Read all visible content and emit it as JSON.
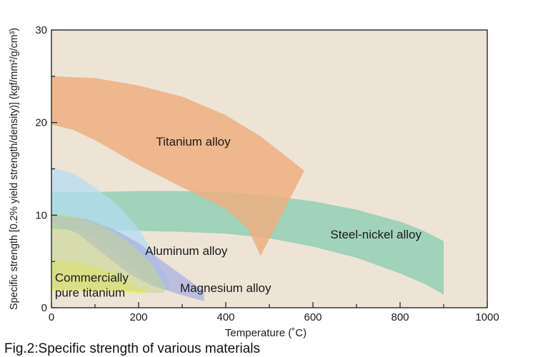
{
  "chart_data": {
    "type": "area",
    "xlabel": "Temperature (˚C)",
    "ylabel": "Specific strength [0.2% yield strength/density)] (kgf/mm²/g/cm³)",
    "xlim": [
      0,
      1000
    ],
    "ylim": [
      0,
      30
    ],
    "x_ticks": [
      "0",
      "200",
      "400",
      "600",
      "800",
      "1000"
    ],
    "y_ticks": [
      "0",
      "10",
      "20",
      "30"
    ],
    "grid": false,
    "background": "#ede4d6",
    "series": [
      {
        "name": "Steel-nickel alloy",
        "label_lines": [
          "Steel-nickel alloy"
        ],
        "label_at": [
          640,
          7.5
        ],
        "color": "#8ccdb2",
        "opacity": 0.78,
        "upper": [
          [
            0,
            12.5
          ],
          [
            100,
            12.5
          ],
          [
            200,
            12.6
          ],
          [
            300,
            12.6
          ],
          [
            400,
            12.5
          ],
          [
            500,
            12.1
          ],
          [
            600,
            11.5
          ],
          [
            700,
            10.6
          ],
          [
            800,
            9.3
          ],
          [
            850,
            8.4
          ],
          [
            900,
            7.2
          ]
        ],
        "lower": [
          [
            0,
            8.5
          ],
          [
            100,
            8.4
          ],
          [
            200,
            8.3
          ],
          [
            300,
            8.2
          ],
          [
            400,
            8.0
          ],
          [
            500,
            7.5
          ],
          [
            600,
            6.6
          ],
          [
            700,
            5.4
          ],
          [
            800,
            3.7
          ],
          [
            860,
            2.5
          ],
          [
            900,
            1.4
          ]
        ]
      },
      {
        "name": "Titanium alloy",
        "label_lines": [
          "Titanium alloy"
        ],
        "label_at": [
          240,
          17.5
        ],
        "color": "#edaf80",
        "opacity": 0.85,
        "upper": [
          [
            0,
            25.0
          ],
          [
            100,
            24.8
          ],
          [
            200,
            24.0
          ],
          [
            300,
            22.8
          ],
          [
            400,
            20.8
          ],
          [
            480,
            18.5
          ],
          [
            540,
            16.3
          ],
          [
            580,
            14.8
          ]
        ],
        "lower": [
          [
            0,
            19.8
          ],
          [
            50,
            19.2
          ],
          [
            100,
            18.1
          ],
          [
            200,
            15.4
          ],
          [
            300,
            13.0
          ],
          [
            400,
            10.7
          ],
          [
            450,
            8.6
          ],
          [
            480,
            5.6
          ]
        ]
      },
      {
        "name": "Aluminum alloy",
        "label_lines": [
          "Aluminum alloy"
        ],
        "label_at": [
          215,
          5.7
        ],
        "color": "#b3dcf2",
        "opacity": 0.72,
        "upper": [
          [
            0,
            15.2
          ],
          [
            50,
            14.5
          ],
          [
            100,
            13.0
          ],
          [
            150,
            11.2
          ],
          [
            200,
            8.5
          ],
          [
            240,
            5.5
          ],
          [
            270,
            2.8
          ]
        ],
        "lower": [
          [
            0,
            9.0
          ],
          [
            50,
            8.5
          ],
          [
            100,
            7.5
          ],
          [
            150,
            5.8
          ],
          [
            200,
            3.8
          ],
          [
            240,
            2.5
          ],
          [
            270,
            1.8
          ]
        ]
      },
      {
        "name": "Magnesium alloy",
        "label_lines": [
          "Magnesium alloy"
        ],
        "label_at": [
          295,
          1.7
        ],
        "color": "#a9aee2",
        "opacity": 0.72,
        "upper": [
          [
            0,
            10.0
          ],
          [
            80,
            9.6
          ],
          [
            150,
            8.3
          ],
          [
            200,
            7.0
          ],
          [
            250,
            5.2
          ],
          [
            300,
            3.5
          ],
          [
            350,
            1.8
          ]
        ],
        "lower": [
          [
            0,
            9.2
          ],
          [
            60,
            8.0
          ],
          [
            120,
            5.8
          ],
          [
            180,
            3.6
          ],
          [
            230,
            2.4
          ],
          [
            290,
            1.5
          ],
          [
            350,
            0.7
          ]
        ]
      },
      {
        "name": "Commercially pure titanium",
        "label_lines": [
          "Commercially",
          "pure titanium"
        ],
        "label_at": [
          8,
          1.2
        ],
        "color": "#f2ec72",
        "opacity": 0.88,
        "upper": [
          [
            0,
            5.2
          ],
          [
            50,
            5.0
          ],
          [
            100,
            4.5
          ],
          [
            150,
            3.6
          ],
          [
            200,
            2.2
          ],
          [
            220,
            1.7
          ]
        ],
        "lower": [
          [
            0,
            1.8
          ],
          [
            50,
            1.8
          ],
          [
            100,
            1.8
          ],
          [
            150,
            1.7
          ],
          [
            220,
            1.5
          ]
        ]
      },
      {
        "name": "",
        "color": "#c3d68e",
        "opacity": 0.55,
        "upper": [
          [
            0,
            10.2
          ],
          [
            60,
            9.8
          ],
          [
            120,
            8.8
          ],
          [
            180,
            7.0
          ],
          [
            230,
            4.8
          ],
          [
            260,
            2.4
          ]
        ],
        "lower": [
          [
            0,
            2.0
          ],
          [
            80,
            2.0
          ],
          [
            160,
            1.9
          ],
          [
            230,
            1.6
          ],
          [
            260,
            1.6
          ]
        ]
      }
    ]
  },
  "caption": "Fig.2:Specific strength of various materials"
}
